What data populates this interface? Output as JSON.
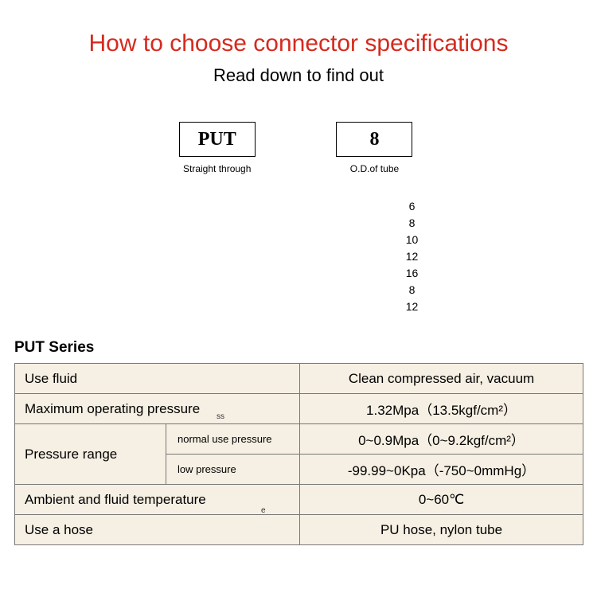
{
  "title": {
    "text": "How to choose connector specifications",
    "color": "#d62a1e"
  },
  "subtitle": "Read down to find out",
  "spec_boxes": {
    "left": {
      "value": "PUT",
      "caption": "Straight through"
    },
    "right": {
      "value": "8",
      "caption": "O.D.of tube"
    }
  },
  "size_list": [
    "6",
    "8",
    "10",
    "12",
    "16",
    "8",
    "12"
  ],
  "series_label": "PUT Series",
  "table": {
    "bg_color": "#f6efe3",
    "border_color": "#777777",
    "rows": [
      {
        "label": "Use fluid",
        "value": "Clean compressed air, vacuum"
      },
      {
        "label": "Maximum operating pressure",
        "value": "1.32Mpa（13.5kgf/cm²）"
      },
      {
        "group_label": "Pressure range",
        "subrows": [
          {
            "sublabel": "normal use pressure",
            "value": "0~0.9Mpa（0~9.2kgf/cm²）"
          },
          {
            "sublabel": "low pressure",
            "value": "-99.99~0Kpa（-750~0mmHg）"
          }
        ]
      },
      {
        "label": "Ambient and fluid temperature",
        "value": "0~60℃"
      },
      {
        "label": "Use a hose",
        "value": "PU hose, nylon tube"
      }
    ]
  },
  "stray_marks": {
    "a": "ss",
    "b": "e"
  }
}
